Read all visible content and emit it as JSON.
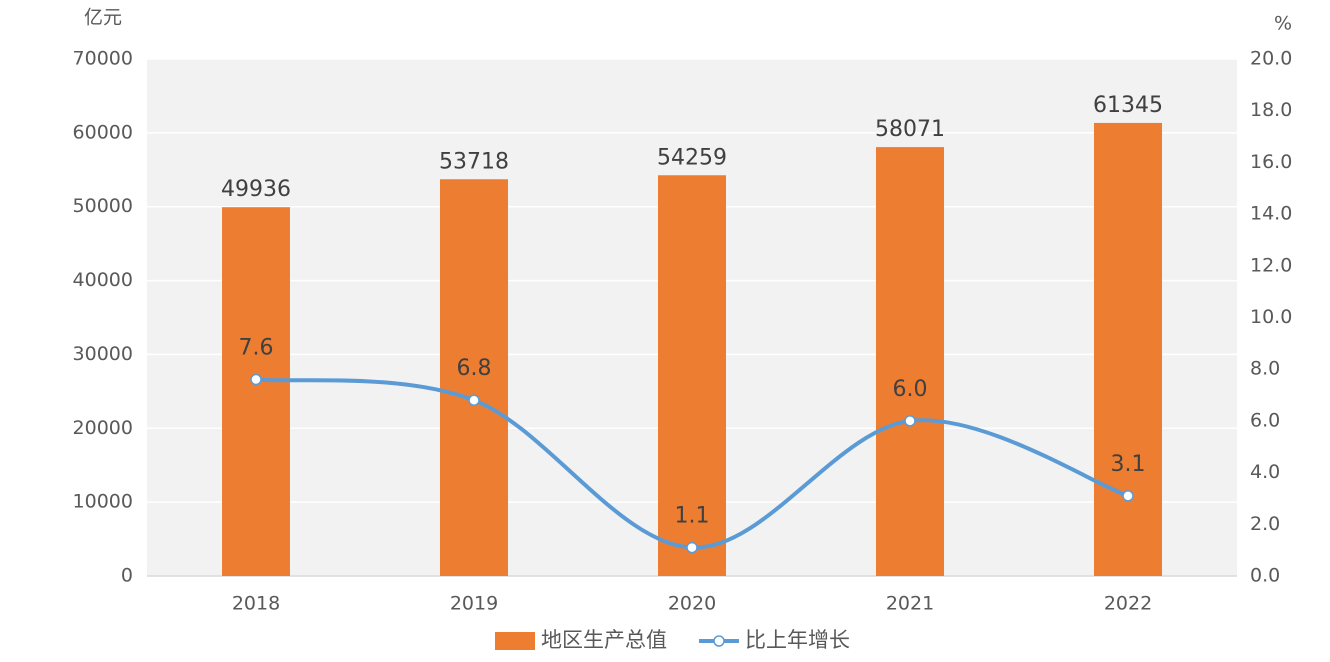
{
  "chart_data": {
    "type": "bar-line",
    "y_label": "亿元",
    "y2_label": "%",
    "categories": [
      "2018",
      "2019",
      "2020",
      "2021",
      "2022"
    ],
    "series": [
      {
        "name": "地区生产总值",
        "type": "bar",
        "color": "#ed7d31",
        "values": [
          49936,
          53718,
          54259,
          58071,
          61345
        ]
      },
      {
        "name": "比上年增长",
        "type": "line",
        "axis": "y2",
        "color": "#5b9bd5",
        "values": [
          7.6,
          6.8,
          1.1,
          6,
          3.1
        ],
        "value_labels": [
          "7.6",
          "6.8",
          "1.1",
          "6.0",
          "3.1"
        ]
      }
    ],
    "ylim": [
      0,
      70000
    ],
    "yticks": [
      0,
      10000,
      20000,
      30000,
      40000,
      50000,
      60000,
      70000
    ],
    "y2lim": [
      0,
      20
    ],
    "y2ticks": [
      {
        "value": 0,
        "label": "0.0"
      },
      {
        "value": 2,
        "label": "2.0"
      },
      {
        "value": 4,
        "label": "4.0"
      },
      {
        "value": 6,
        "label": "6.0"
      },
      {
        "value": 8,
        "label": "8.0"
      },
      {
        "value": 10,
        "label": "10.0"
      },
      {
        "value": 12,
        "label": "12.0"
      },
      {
        "value": 14,
        "label": "14.0"
      },
      {
        "value": 16,
        "label": "16.0"
      },
      {
        "value": 18,
        "label": "18.0"
      },
      {
        "value": 20,
        "label": "20.0"
      }
    ],
    "grid": true,
    "legend": "bottom"
  }
}
